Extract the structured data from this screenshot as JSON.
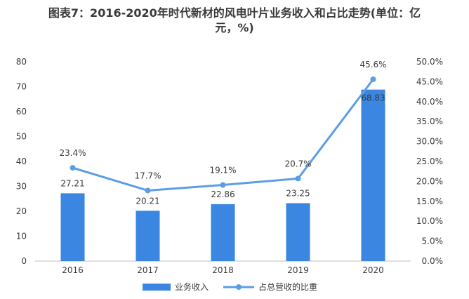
{
  "chart_data": {
    "type": "bar",
    "title_line1": "图表7：2016-2020年时代新材的风电叶片业务收入和占比走势(单位：亿",
    "title_line2": "元，%)",
    "categories": [
      "2016",
      "2017",
      "2018",
      "2019",
      "2020"
    ],
    "series": [
      {
        "name": "业务收入",
        "type": "bar",
        "axis": "left",
        "values": [
          27.21,
          20.21,
          22.86,
          23.25,
          68.83
        ],
        "labels": [
          "27.21",
          "20.21",
          "22.86",
          "23.25",
          "68.83"
        ]
      },
      {
        "name": "占总营收的比重",
        "type": "line",
        "axis": "right",
        "values": [
          23.4,
          17.7,
          19.1,
          20.7,
          45.6
        ],
        "labels": [
          "23.4%",
          "17.7%",
          "19.1%",
          "20.7%",
          "45.6%"
        ]
      }
    ],
    "ylim_left": [
      0,
      80
    ],
    "ylim_right": [
      0,
      50
    ],
    "left_ticks": [
      "0",
      "10",
      "20",
      "30",
      "40",
      "50",
      "60",
      "70",
      "80"
    ],
    "right_ticks": [
      "0.0%",
      "5.0%",
      "10.0%",
      "15.0%",
      "20.0%",
      "25.0%",
      "30.0%",
      "35.0%",
      "40.0%",
      "45.0%",
      "50.0%"
    ],
    "legend_position": "bottom",
    "grid": false,
    "colors": {
      "bar": "#3a86e0",
      "line": "#5b9ee6",
      "text": "#3a3a3a",
      "axis": "#bfbfbf"
    }
  }
}
